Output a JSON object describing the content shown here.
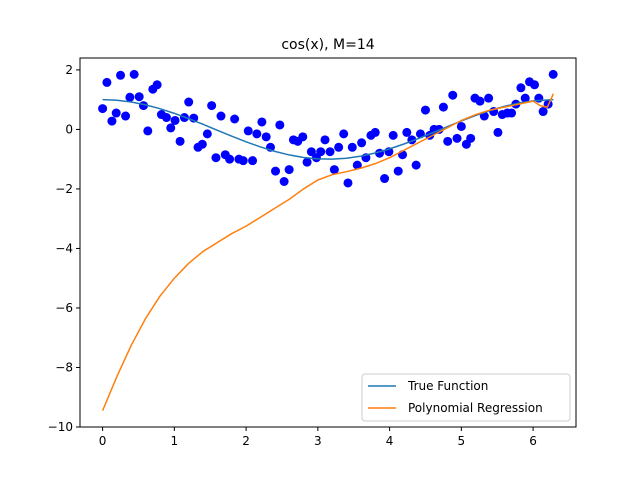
{
  "chart_data": {
    "type": "scatter",
    "title": "cos(x), M=14",
    "xlabel": "",
    "ylabel": "",
    "xlim": [
      -0.315,
      6.598
    ],
    "ylim": [
      -10,
      2.4
    ],
    "xticks": [
      0,
      1,
      2,
      3,
      4,
      5,
      6
    ],
    "yticks": [
      2,
      0,
      -2,
      -4,
      -6,
      -8,
      -10
    ],
    "xtick_labels": [
      "0",
      "1",
      "2",
      "3",
      "4",
      "5",
      "6"
    ],
    "ytick_labels": [
      "2",
      "0",
      "−2",
      "−4",
      "−6",
      "−8",
      "−10"
    ],
    "grid": false,
    "legend": {
      "location": "lower-right",
      "entries": [
        "True Function",
        "Polynomial Regression"
      ]
    },
    "colors": {
      "scatter": "#0000ff",
      "true_function": "#1f77b4",
      "polynomial": "#ff7f0e"
    },
    "scatter_points": [
      [
        0.0,
        0.7
      ],
      [
        0.06,
        1.58
      ],
      [
        0.13,
        0.28
      ],
      [
        0.19,
        0.55
      ],
      [
        0.25,
        1.82
      ],
      [
        0.32,
        0.45
      ],
      [
        0.38,
        1.08
      ],
      [
        0.44,
        1.85
      ],
      [
        0.51,
        1.1
      ],
      [
        0.57,
        0.8
      ],
      [
        0.63,
        -0.05
      ],
      [
        0.7,
        1.35
      ],
      [
        0.76,
        1.5
      ],
      [
        0.82,
        0.5
      ],
      [
        0.89,
        0.4
      ],
      [
        0.95,
        0.05
      ],
      [
        1.01,
        0.3
      ],
      [
        1.08,
        -0.4
      ],
      [
        1.14,
        0.4
      ],
      [
        1.2,
        0.92
      ],
      [
        1.27,
        0.38
      ],
      [
        1.33,
        -0.6
      ],
      [
        1.39,
        -0.5
      ],
      [
        1.46,
        -0.15
      ],
      [
        1.52,
        0.8
      ],
      [
        1.58,
        -0.95
      ],
      [
        1.65,
        0.45
      ],
      [
        1.71,
        -0.85
      ],
      [
        1.77,
        -1.0
      ],
      [
        1.84,
        0.35
      ],
      [
        1.9,
        -1.0
      ],
      [
        1.96,
        -1.05
      ],
      [
        2.03,
        -0.05
      ],
      [
        2.09,
        -1.05
      ],
      [
        2.15,
        -0.15
      ],
      [
        2.22,
        0.25
      ],
      [
        2.28,
        -0.25
      ],
      [
        2.34,
        -0.6
      ],
      [
        2.41,
        -1.4
      ],
      [
        2.47,
        0.15
      ],
      [
        2.53,
        -1.75
      ],
      [
        2.6,
        -1.35
      ],
      [
        2.66,
        -0.35
      ],
      [
        2.72,
        -0.4
      ],
      [
        2.79,
        -0.25
      ],
      [
        2.85,
        -1.1
      ],
      [
        2.91,
        -0.75
      ],
      [
        2.98,
        -0.95
      ],
      [
        3.04,
        -0.75
      ],
      [
        3.1,
        -0.35
      ],
      [
        3.17,
        -0.75
      ],
      [
        3.23,
        -1.35
      ],
      [
        3.29,
        -0.6
      ],
      [
        3.36,
        -0.15
      ],
      [
        3.42,
        -1.8
      ],
      [
        3.48,
        -0.6
      ],
      [
        3.55,
        -1.2
      ],
      [
        3.61,
        -0.45
      ],
      [
        3.67,
        -0.95
      ],
      [
        3.74,
        -0.2
      ],
      [
        3.8,
        -0.1
      ],
      [
        3.86,
        -0.8
      ],
      [
        3.93,
        -1.65
      ],
      [
        3.99,
        -0.75
      ],
      [
        4.05,
        -0.2
      ],
      [
        4.12,
        -1.4
      ],
      [
        4.18,
        -0.85
      ],
      [
        4.24,
        -0.1
      ],
      [
        4.31,
        -0.35
      ],
      [
        4.37,
        -1.2
      ],
      [
        4.43,
        -0.15
      ],
      [
        4.5,
        0.65
      ],
      [
        4.56,
        -0.2
      ],
      [
        4.62,
        0.0
      ],
      [
        4.69,
        0.0
      ],
      [
        4.75,
        0.75
      ],
      [
        4.81,
        -0.4
      ],
      [
        4.88,
        1.15
      ],
      [
        4.94,
        -0.3
      ],
      [
        5.0,
        0.1
      ],
      [
        5.07,
        -0.5
      ],
      [
        5.13,
        -0.3
      ],
      [
        5.19,
        1.05
      ],
      [
        5.26,
        0.95
      ],
      [
        5.32,
        0.45
      ],
      [
        5.38,
        1.05
      ],
      [
        5.45,
        0.6
      ],
      [
        5.51,
        -0.1
      ],
      [
        5.57,
        0.5
      ],
      [
        5.64,
        0.55
      ],
      [
        5.7,
        0.55
      ],
      [
        5.76,
        0.85
      ],
      [
        5.83,
        1.4
      ],
      [
        5.89,
        1.05
      ],
      [
        5.95,
        1.6
      ],
      [
        6.02,
        1.5
      ],
      [
        6.08,
        1.05
      ],
      [
        6.14,
        0.6
      ],
      [
        6.21,
        0.85
      ],
      [
        6.28,
        1.85
      ]
    ],
    "series": [
      {
        "name": "True Function",
        "x": [
          0,
          0.2,
          0.4,
          0.6,
          0.8,
          1.0,
          1.2,
          1.4,
          1.6,
          1.8,
          2.0,
          2.2,
          2.4,
          2.6,
          2.8,
          3.0,
          3.2,
          3.4,
          3.6,
          3.8,
          4.0,
          4.2,
          4.4,
          4.6,
          4.8,
          5.0,
          5.2,
          5.4,
          5.6,
          5.8,
          6.0,
          6.283
        ],
        "values": [
          1.0,
          0.98,
          0.921,
          0.825,
          0.697,
          0.54,
          0.362,
          0.17,
          -0.029,
          -0.227,
          -0.416,
          -0.589,
          -0.737,
          -0.857,
          -0.942,
          -0.99,
          -0.998,
          -0.967,
          -0.897,
          -0.791,
          -0.654,
          -0.49,
          -0.307,
          -0.112,
          0.087,
          0.284,
          0.469,
          0.635,
          0.776,
          0.886,
          0.96,
          1.0
        ]
      },
      {
        "name": "Polynomial Regression",
        "x": [
          0,
          0.2,
          0.4,
          0.6,
          0.8,
          1.0,
          1.2,
          1.4,
          1.6,
          1.8,
          2.0,
          2.2,
          2.4,
          2.6,
          2.8,
          3.0,
          3.2,
          3.4,
          3.6,
          3.8,
          4.0,
          4.2,
          4.4,
          4.6,
          4.8,
          5.0,
          5.2,
          5.4,
          5.6,
          5.8,
          6.0,
          6.1,
          6.2,
          6.283
        ],
        "values": [
          -9.45,
          -8.3,
          -7.25,
          -6.35,
          -5.6,
          -5.0,
          -4.5,
          -4.1,
          -3.8,
          -3.5,
          -3.25,
          -2.95,
          -2.65,
          -2.35,
          -2.0,
          -1.7,
          -1.52,
          -1.42,
          -1.3,
          -1.15,
          -0.95,
          -0.7,
          -0.45,
          -0.2,
          0.05,
          0.3,
          0.5,
          0.65,
          0.75,
          0.85,
          0.95,
          0.8,
          0.75,
          1.2
        ]
      }
    ]
  }
}
